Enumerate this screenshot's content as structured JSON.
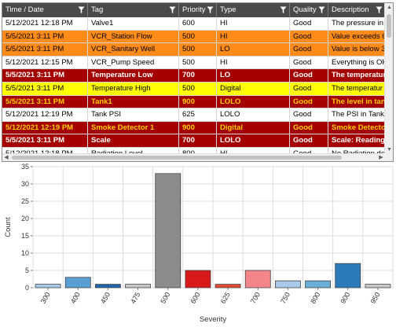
{
  "grid": {
    "columns": [
      {
        "label": "Time / Date",
        "width": 109
      },
      {
        "label": "Tag",
        "width": 116
      },
      {
        "label": "Priority",
        "width": 48
      },
      {
        "label": "Type",
        "width": 93
      },
      {
        "label": "Quality",
        "width": 49
      },
      {
        "label": "Description",
        "width": 72
      }
    ],
    "rows": [
      {
        "style": "white",
        "cells": [
          "5/12/2021 12:18 PM",
          "Valve1",
          "600",
          "HI",
          "Good",
          "The pressure in V"
        ]
      },
      {
        "style": "orange",
        "cells": [
          "5/5/2021 3:11 PM",
          "VCR_Station Flow",
          "500",
          "HI",
          "Good",
          "Value exceeds 6."
        ]
      },
      {
        "style": "orange",
        "cells": [
          "5/5/2021 3:11 PM",
          "VCR_Sanitary Well",
          "500",
          "LO",
          "Good",
          "Value is below 3"
        ]
      },
      {
        "style": "white",
        "cells": [
          "5/12/2021 12:15 PM",
          "VCR_Pump Speed",
          "500",
          "HI",
          "Good",
          "Everything is OK"
        ]
      },
      {
        "style": "darkred",
        "cells": [
          "5/5/2021 3:11 PM",
          "Temperature Low",
          "700",
          "LO",
          "Good",
          "The temperatur"
        ]
      },
      {
        "style": "yellow",
        "cells": [
          "5/5/2021 3:11 PM",
          "Temperature High",
          "500",
          "Digital",
          "Good",
          "The temperatur"
        ]
      },
      {
        "style": "darkred-y",
        "cells": [
          "5/5/2021 3:11 PM",
          "Tank1",
          "900",
          "LOLO",
          "Good",
          "The level in tank"
        ]
      },
      {
        "style": "white",
        "cells": [
          "5/12/2021 12:19 PM",
          "Tank PSI",
          "625",
          "LOLO",
          "Good",
          "The PSI in Tank1"
        ]
      },
      {
        "style": "darkred-y",
        "cells": [
          "5/12/2021 12:19 PM",
          "Smoke Detector 1",
          "900",
          "Digital",
          "Good",
          "Smoke Detector"
        ]
      },
      {
        "style": "darkred",
        "cells": [
          "5/5/2021 3:11 PM",
          "Scale",
          "700",
          "LOLO",
          "Good",
          "Scale: Reading"
        ]
      },
      {
        "style": "white",
        "cells": [
          "5/12/2021 12:18 PM",
          "Radiation Level",
          "800",
          "HI",
          "Good",
          "No Radiation det"
        ]
      }
    ],
    "partial_row_style": "orange"
  },
  "icons": {
    "filter": "filter-funnel-icon",
    "scroll_up": "scroll-up-arrow-icon",
    "scroll_down": "scroll-down-arrow-icon",
    "scroll_left": "scroll-left-arrow-icon",
    "scroll_right": "scroll-right-arrow-icon"
  },
  "colors": {
    "header_bg": "#4a4a4a",
    "orange_row": "#ff8c1a",
    "yellow_row": "#ffff00",
    "darkred_row": "#a50000"
  },
  "chart_data": {
    "type": "bar",
    "title": "",
    "xlabel": "Severity",
    "ylabel": "Count",
    "categories": [
      "300",
      "400",
      "450",
      "475",
      "500",
      "600",
      "625",
      "700",
      "750",
      "800",
      "900",
      "950"
    ],
    "values": [
      1,
      3,
      1,
      1,
      33,
      5,
      1,
      5,
      2,
      2,
      7,
      1
    ],
    "colors": [
      "#a9c9e8",
      "#5a9fd4",
      "#2166ac",
      "#c7c7c7",
      "#8c8c8c",
      "#d7191c",
      "#e34a33",
      "#f4868b",
      "#a9c9e8",
      "#6baed6",
      "#2b7bba",
      "#c7c7c7"
    ],
    "ylim": [
      0,
      35
    ],
    "yticks": [
      0,
      5,
      10,
      15,
      20,
      25,
      30,
      35
    ],
    "grid": true
  }
}
